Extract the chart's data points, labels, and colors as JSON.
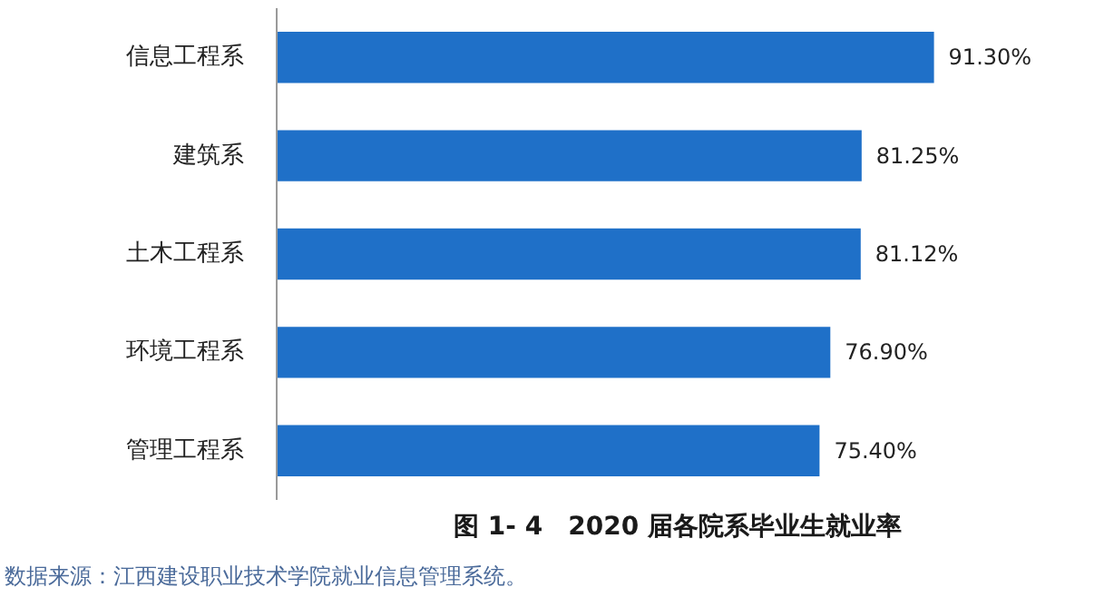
{
  "chart_data": {
    "type": "bar",
    "orientation": "horizontal",
    "title": "图 1- 4　2020 届各院系毕业生就业率",
    "categories": [
      "信息工程系",
      "建筑系",
      "土木工程系",
      "环境工程系",
      "管理工程系"
    ],
    "values": [
      91.3,
      81.25,
      81.12,
      76.9,
      75.4
    ],
    "value_labels": [
      "91.30%",
      "81.25%",
      "81.12%",
      "76.90%",
      "75.40%"
    ],
    "color": "#1f70c8",
    "annotations": [
      "数据来源：江西建设职业技术学院就业信息管理系统。"
    ]
  }
}
